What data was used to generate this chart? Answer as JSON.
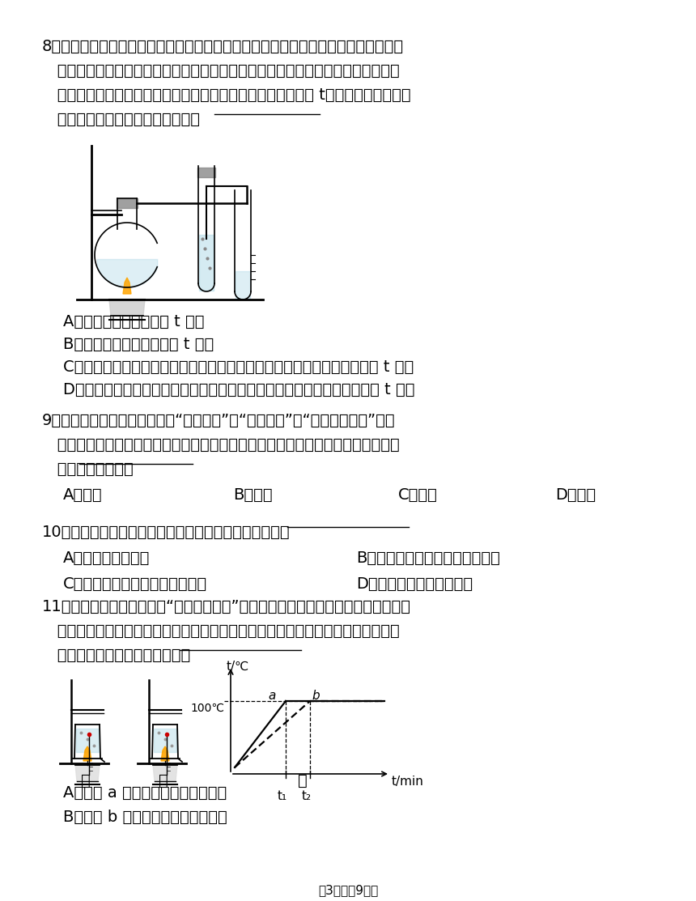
{
  "background_color": "#ffffff",
  "font_size_body": 14,
  "font_size_small": 11,
  "footer_text": "第3页（兲9页）",
  "q8_text_line1": "8．如图所示，在两个相同试管甲和乙中分别装入质量和初温相同的水，然后将沸腾时",
  "q8_text_line2": "   产生的水蕊气直接通入试管甲的水中，水蕊气在甲中几乎全部液化，待甲中的水面",
  "q8_text_line3": "   上升一段高度后，停止通入水蕊气，测出此时甲中水的温度为 t，以下能验证水蕊气",
  "q8_text_line4": "   液化放热的操作是＿＿＿＿＿＿＿",
  "q8_A": "A．测出乙中的水温并与 t 比较",
  "q8_B": "B．测出烧瓶中的水温并与 t 比较",
  "q8_C": "C．将烧瓶内开水倒入乙中直至与甲中水面相平，摇匀后测出乙中水温并与 t 比较",
  "q8_D": "D．将另一杯开水倒入乙中直至与甲中水面相平，摇匀后测出乙中水温并与 t 比较",
  "q9_text_line1": "9．加油站都有这样的提示：请“息火加油”、“禁止吸烟”、“不要使用手机”等。",
  "q9_text_line2": "   这是为了防止火花点燃汽油引起火灾，因为常温下液态的汽油容易发生的物态变化",
  "q9_text_line3": "   是＿＿＿＿＿＿＿",
  "q9_A": "A．液化",
  "q9_B": "B．汽化",
  "q9_C": "C．燔化",
  "q9_D": "D．凝固",
  "q10_text_line1": "10．下列物态变化中，属于汽化现象的是＿＿＿＿＿＿＿",
  "q10_A": "A．春天，冰雪消融",
  "q10_B": "B．夏天，晧在室内的湿衣服变干",
  "q10_C": "C．秋天，早晨草木上露珠的形成",
  "q10_D": "D．冬天，湖面的水结成冰",
  "q11_text_line1": "11．如图甲、乙所示，是在“探究水的沸腾”实验时，两组同学分别安装的实验装置，",
  "q11_text_line2": "   图丙是他们根据实验数据绘制的水的温度跟时间的关系图象．根据有关信息，下列",
  "q11_text_line3": "   说法中正确的是＿＿＿＿＿＿＿",
  "q11_label_jia": "甲",
  "q11_label_yi": "乙",
  "q11_label_bing": "丙",
  "q11_A": "A．图线 a 对应的是乙实验中的数据",
  "q11_B": "B．图线 b 对应的是甲实验中的数据"
}
